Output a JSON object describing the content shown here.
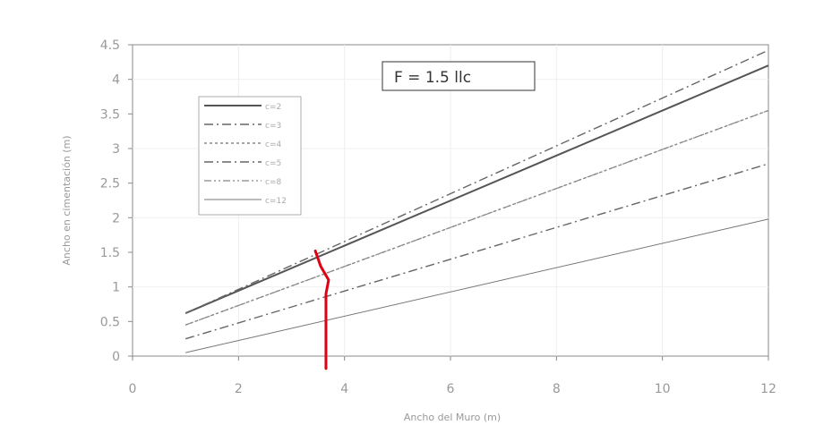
{
  "chart_data": {
    "type": "line",
    "annotation": "F = 1.5 llc",
    "xlabel": "Ancho del Muro (m)",
    "ylabel": "Ancho en cimentación (m)",
    "xlim": [
      0,
      12
    ],
    "ylim": [
      0,
      4.5
    ],
    "xticks": [
      "0",
      "2",
      "4",
      "6",
      "8",
      "10",
      "12"
    ],
    "yticks": [
      "0",
      "0.5",
      "1",
      "1.5",
      "2",
      "2.5",
      "3",
      "3.5",
      "4",
      "4.5"
    ],
    "grid": "vertical and horizontal, light",
    "legend_placement": "upper-left",
    "series": [
      {
        "name": "c=2",
        "style": "solid",
        "x": [
          1,
          12
        ],
        "y": [
          0.62,
          4.2
        ]
      },
      {
        "name": "c=3",
        "style": "dash-dot",
        "x": [
          1,
          12
        ],
        "y": [
          0.62,
          4.42
        ]
      },
      {
        "name": "c=4",
        "style": "dotted",
        "x": [
          1,
          12
        ],
        "y": [
          0.45,
          3.55
        ]
      },
      {
        "name": "c=5",
        "style": "dash-dot",
        "x": [
          1,
          12
        ],
        "y": [
          0.25,
          2.78
        ]
      },
      {
        "name": "c=8",
        "style": "dash-dot-dot",
        "x": [
          1,
          12
        ],
        "y": [
          0.45,
          3.55
        ]
      },
      {
        "name": "c=12",
        "style": "solid-thin",
        "x": [
          1,
          12
        ],
        "y": [
          0.05,
          1.98
        ]
      }
    ],
    "overlay": {
      "description_color": "#e00012",
      "points": [
        [
          3.45,
          1.52
        ],
        [
          3.55,
          1.3
        ],
        [
          3.7,
          1.1
        ],
        [
          3.65,
          0.9
        ],
        [
          3.65,
          -0.18
        ]
      ]
    }
  }
}
